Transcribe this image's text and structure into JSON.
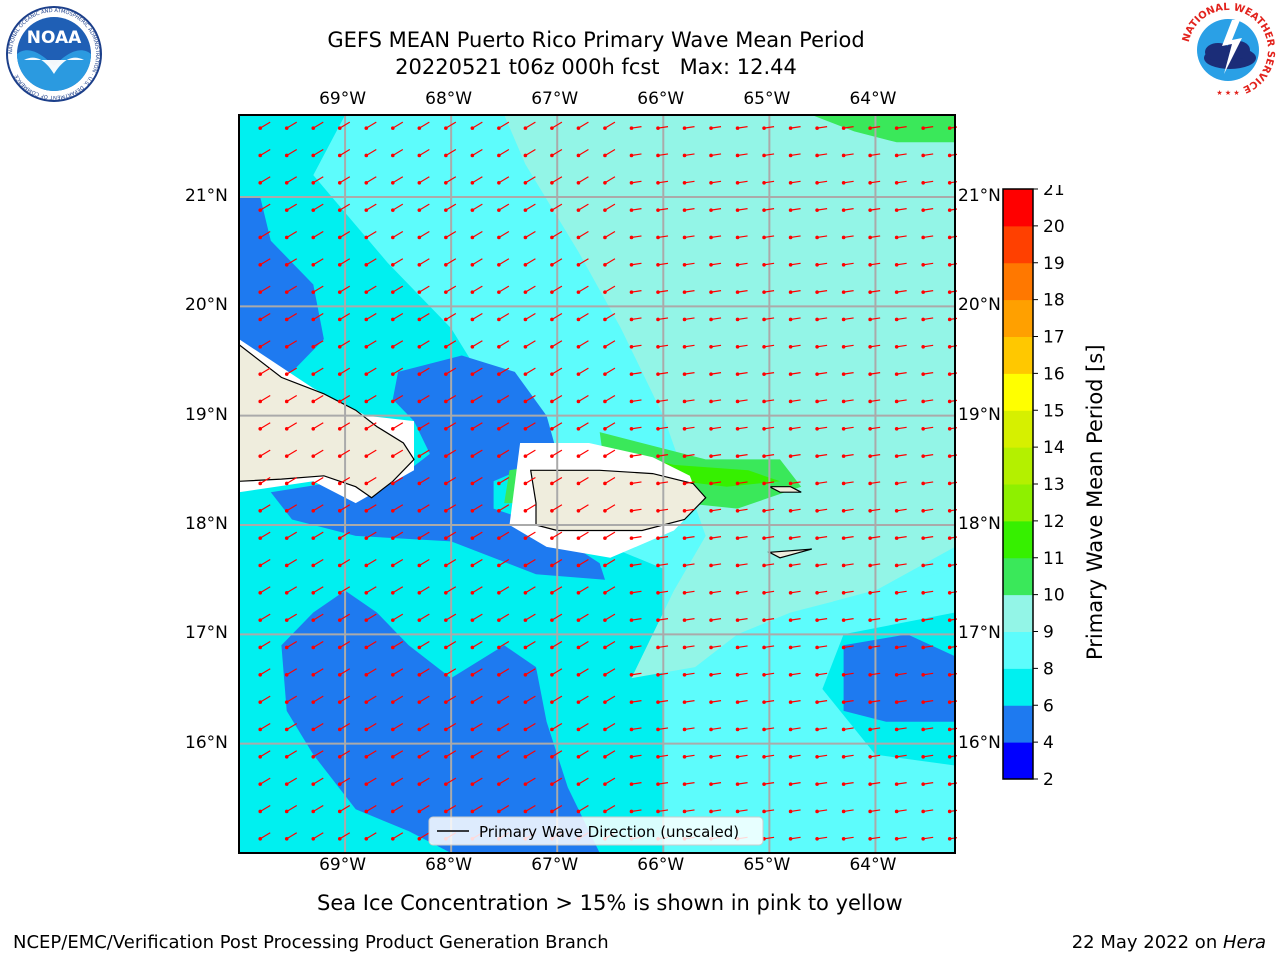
{
  "header": {
    "title_line1": "GEFS MEAN Puerto Rico Primary Wave Mean Period",
    "title_line2": "20220521 t06z 000h fcst   Max: 12.44"
  },
  "logos": {
    "noaa_text": "NOAA",
    "noaa_ring_text": "NATIONAL OCEANIC AND ATMOSPHERIC ADMINISTRATION · U.S. DEPARTMENT OF COMMERCE",
    "nws_ring_text": "NATIONAL WEATHER SERVICE"
  },
  "map": {
    "lon_ticks": [
      "69°W",
      "68°W",
      "67°W",
      "66°W",
      "65°W",
      "64°W"
    ],
    "lat_ticks": [
      "21°N",
      "20°N",
      "19°N",
      "18°N",
      "17°N",
      "16°N"
    ],
    "lon_range": [
      -70.0,
      -63.25
    ],
    "lat_range": [
      15.0,
      21.75
    ],
    "grid": true,
    "legend_label": "Primary Wave Direction (unscaled)",
    "arrow_color": "#ff0000",
    "land_color": "#efeddd",
    "land_labels": []
  },
  "colorbar": {
    "title": "Primary Wave Mean Period [s]",
    "bounds": [
      2,
      4,
      6,
      8,
      9,
      10,
      11,
      12,
      13,
      14,
      15,
      16,
      17,
      18,
      19,
      20,
      21
    ],
    "labels": [
      "21",
      "20",
      "19",
      "18",
      "17",
      "16",
      "15",
      "14",
      "13",
      "12",
      "11",
      "10",
      "9",
      "8",
      "6",
      "4",
      "2"
    ],
    "colors": [
      "#0000ff",
      "#1e7af0",
      "#00f0f0",
      "#5dfcfc",
      "#93f5e7",
      "#3ae85a",
      "#36f000",
      "#8ef000",
      "#b4f000",
      "#d6f000",
      "#ffff00",
      "#ffc800",
      "#ffa000",
      "#ff7800",
      "#ff4000",
      "#ff0000"
    ]
  },
  "footer": {
    "caption": "Sea Ice Concentration > 15% is shown in pink to yellow",
    "left": "NCEP/EMC/Verification Post Processing Product Generation Branch",
    "right_prefix": "22 May 2022 on ",
    "right_host": "Hera"
  }
}
